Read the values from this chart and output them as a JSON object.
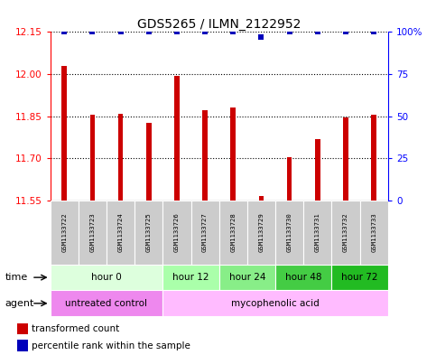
{
  "title": "GDS5265 / ILMN_2122952",
  "samples": [
    "GSM1133722",
    "GSM1133723",
    "GSM1133724",
    "GSM1133725",
    "GSM1133726",
    "GSM1133727",
    "GSM1133728",
    "GSM1133729",
    "GSM1133730",
    "GSM1133731",
    "GSM1133732",
    "GSM1133733"
  ],
  "transformed_count": [
    12.03,
    11.855,
    11.86,
    11.825,
    11.995,
    11.87,
    11.88,
    11.565,
    11.705,
    11.77,
    11.845,
    11.855
  ],
  "percentile_rank": [
    100,
    100,
    100,
    100,
    100,
    100,
    100,
    97,
    100,
    100,
    100,
    100
  ],
  "ylim_left": [
    11.55,
    12.15
  ],
  "ylim_right": [
    0,
    100
  ],
  "yticks_left": [
    11.55,
    11.7,
    11.85,
    12.0,
    12.15
  ],
  "yticks_right": [
    0,
    25,
    50,
    75,
    100
  ],
  "bar_color": "#cc0000",
  "dot_color": "#0000bb",
  "time_groups": [
    {
      "label": "hour 0",
      "start": 0,
      "end": 4,
      "color": "#ddffdd"
    },
    {
      "label": "hour 12",
      "start": 4,
      "end": 6,
      "color": "#aaffaa"
    },
    {
      "label": "hour 24",
      "start": 6,
      "end": 8,
      "color": "#88ee88"
    },
    {
      "label": "hour 48",
      "start": 8,
      "end": 10,
      "color": "#44cc44"
    },
    {
      "label": "hour 72",
      "start": 10,
      "end": 12,
      "color": "#22bb22"
    }
  ],
  "agent_groups": [
    {
      "label": "untreated control",
      "start": 0,
      "end": 4,
      "color": "#ee88ee"
    },
    {
      "label": "mycophenolic acid",
      "start": 4,
      "end": 12,
      "color": "#ffbbff"
    }
  ],
  "dotted_yticks": [
    11.7,
    11.85,
    12.0
  ],
  "legend_bar_label": "transformed count",
  "legend_dot_label": "percentile rank within the sample",
  "bar_width": 0.18
}
